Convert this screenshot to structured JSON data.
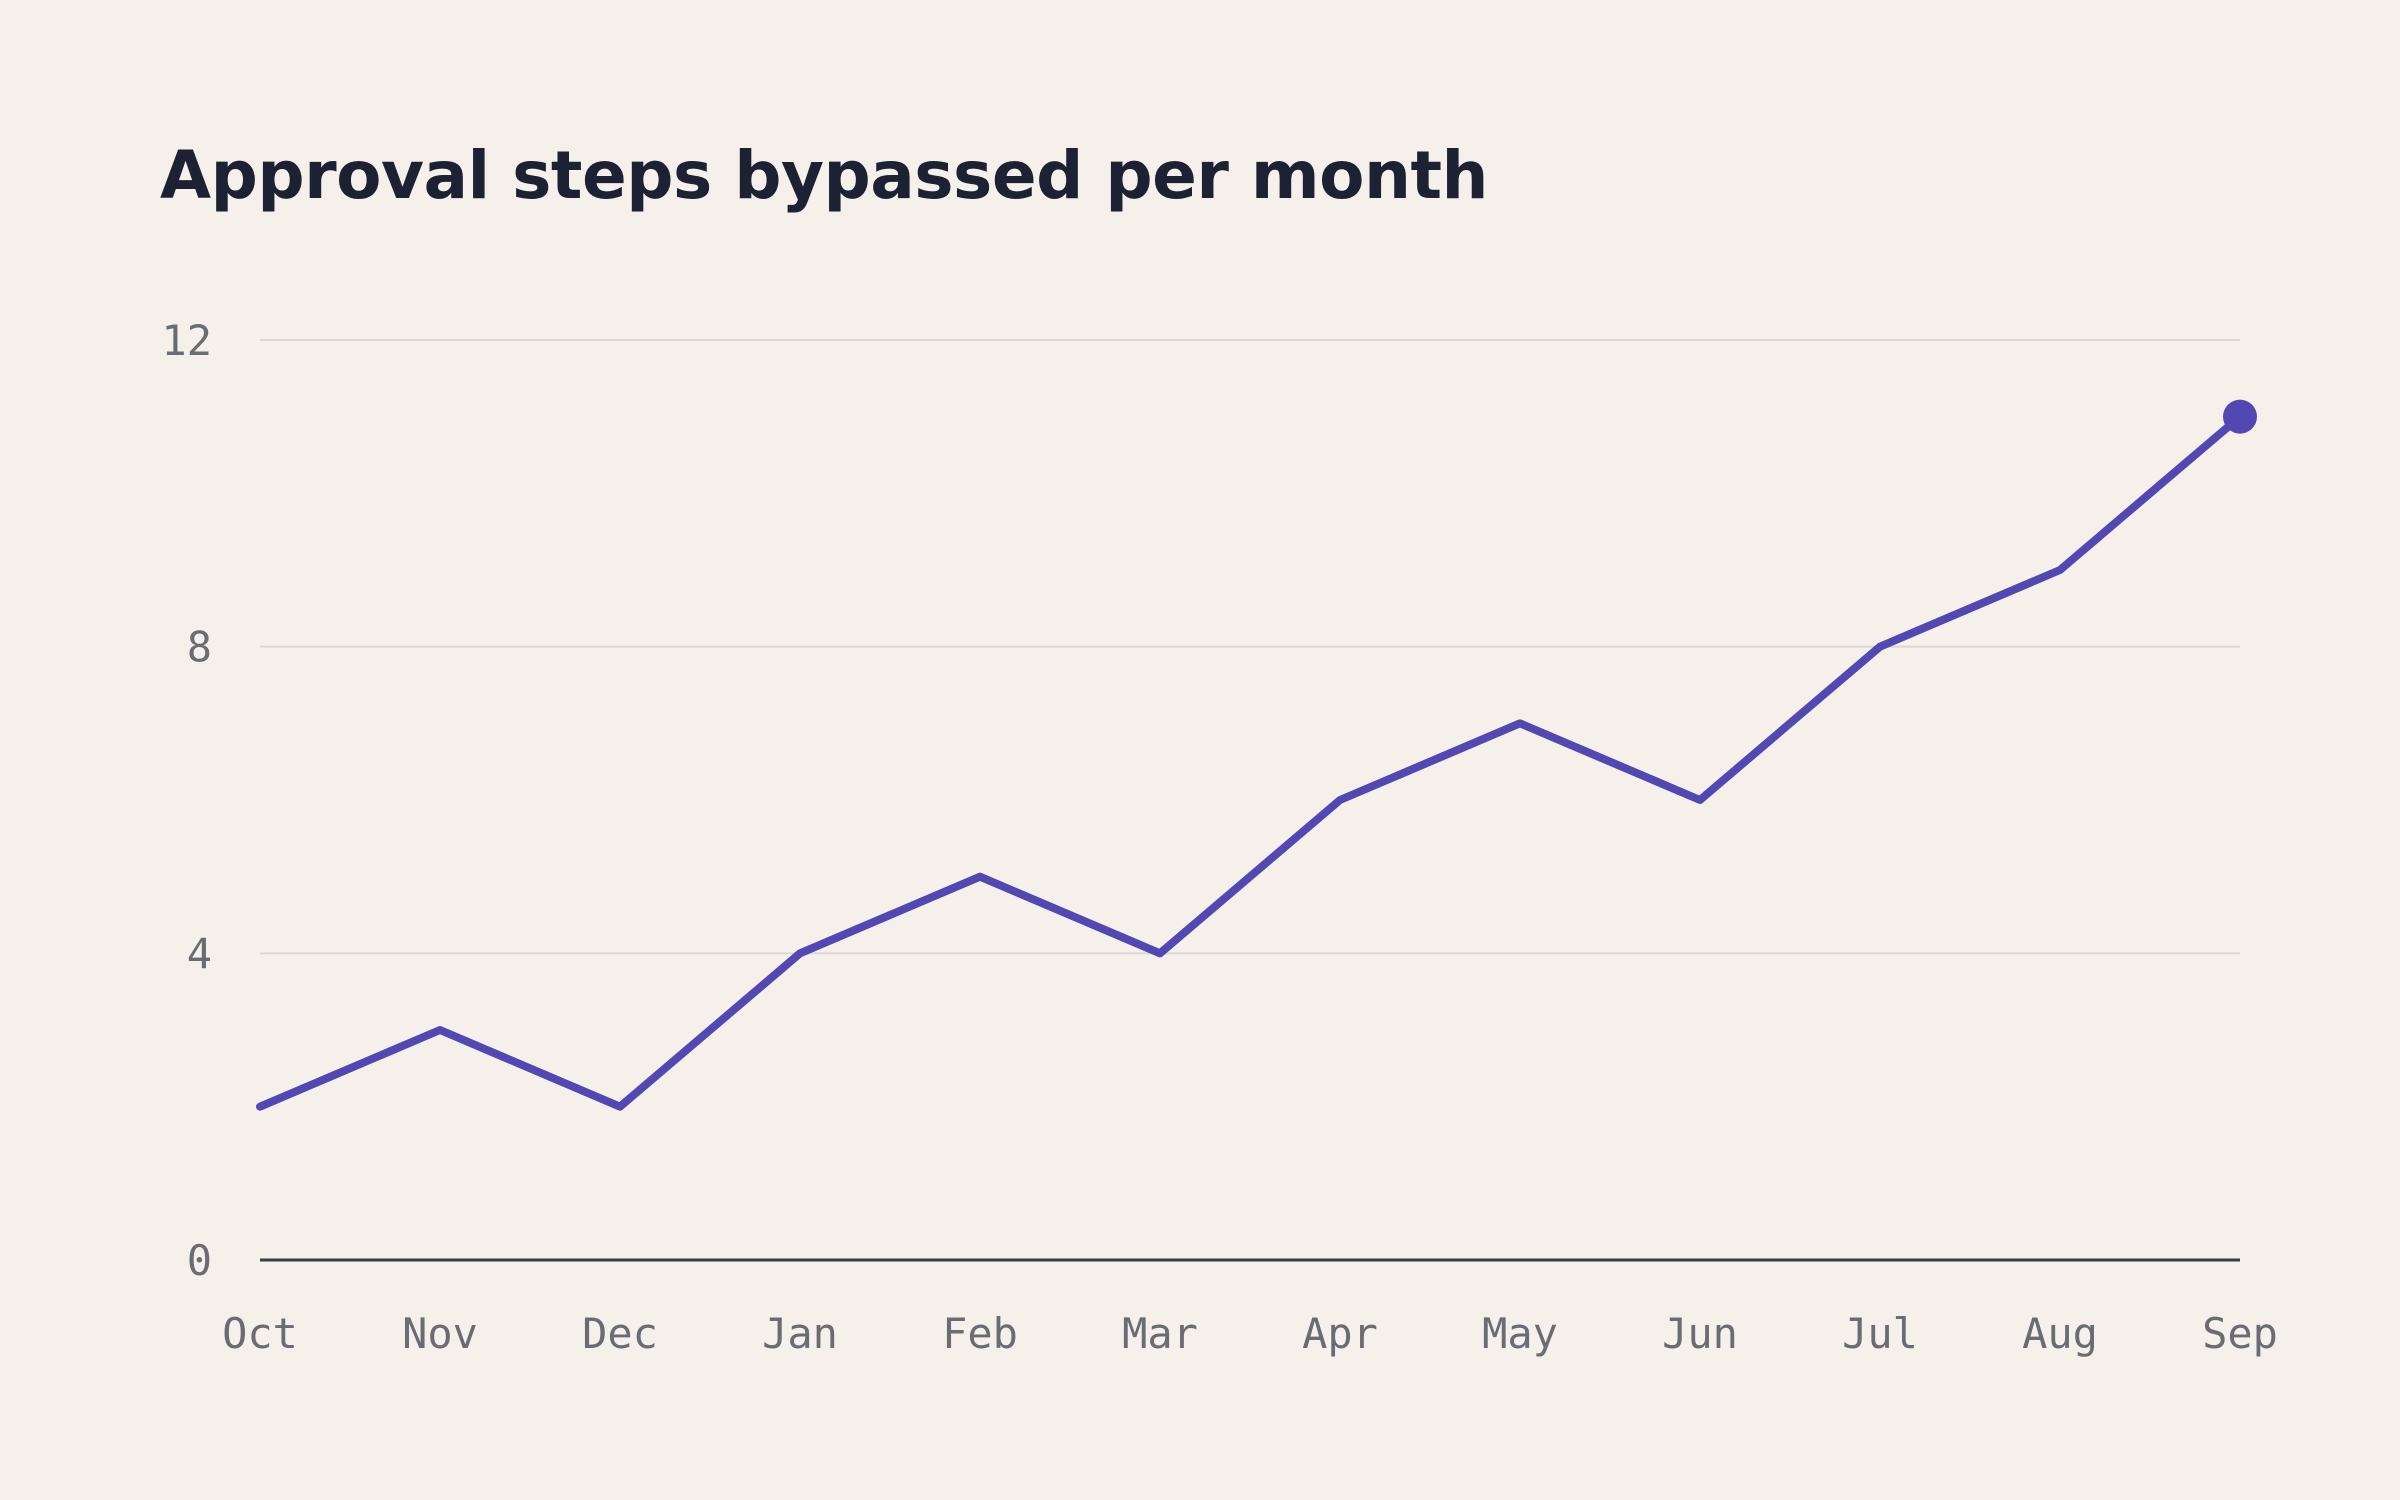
{
  "chart_data": {
    "type": "line",
    "title": "Approval steps bypassed per month",
    "xlabel": "",
    "ylabel": "",
    "categories": [
      "Oct",
      "Nov",
      "Dec",
      "Jan",
      "Feb",
      "Mar",
      "Apr",
      "May",
      "Jun",
      "Jul",
      "Aug",
      "Sep"
    ],
    "values": [
      2,
      3,
      2,
      4,
      5,
      4,
      6,
      7,
      6,
      8,
      9,
      11
    ],
    "ylim": [
      0,
      12
    ],
    "yticks": [
      0,
      4,
      8,
      12
    ],
    "grid": true,
    "legend": "none",
    "highlight_last_point": true
  },
  "colors": {
    "background": "#f5f1ea",
    "line": "#5347b3",
    "gridline": "#dcd8d1",
    "axis": "#3a3c46",
    "title": "#1c2133",
    "tick_text": "#6a6c75"
  }
}
